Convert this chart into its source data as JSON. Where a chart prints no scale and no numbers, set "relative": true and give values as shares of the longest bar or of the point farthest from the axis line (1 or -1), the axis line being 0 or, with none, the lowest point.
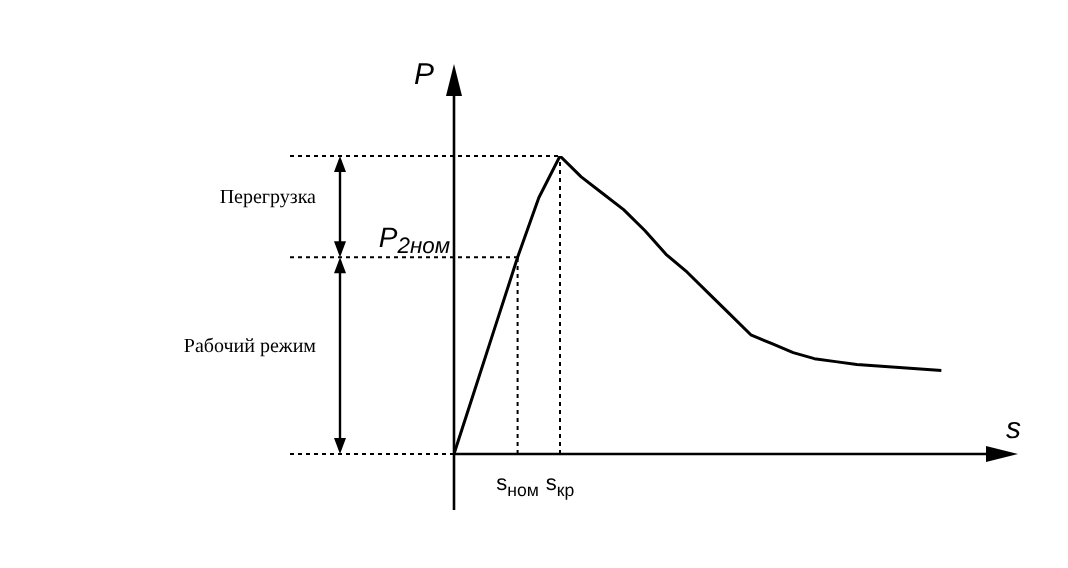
{
  "chart_data": {
    "type": "line",
    "relative": true,
    "xlabel": "s",
    "ylabel": "P",
    "line_style": "solid",
    "marker": "none",
    "categories": [
      null,
      null,
      null,
      "s$_{ном}$",
      null,
      "s$_{кр}$",
      null,
      null,
      null,
      null,
      null,
      null,
      null,
      null,
      null,
      null,
      null,
      null,
      null,
      null,
      null,
      null,
      null,
      null
    ],
    "series": [
      {
        "color": "#000000",
        "values": [
          0,
          0.22,
          0.44,
          0.66,
          0.86,
          1,
          0.93,
          0.875,
          0.82,
          0.75,
          0.67,
          0.61,
          0.54,
          0.47,
          0.4,
          0.37,
          0.34,
          0.32,
          0.31,
          0.3,
          0.295,
          0.29,
          0.285,
          0.28
        ]
      }
    ],
    "ref_lines": [
      {
        "axis": "y",
        "value": 1,
        "line_style": "dotted"
      },
      {
        "axis": "y",
        "value": 0.66,
        "label": "P$_{2ном}$",
        "line_style": "dotted"
      }
    ],
    "annotations": [
      "Перегрузка",
      "Рабочий режим"
    ]
  }
}
